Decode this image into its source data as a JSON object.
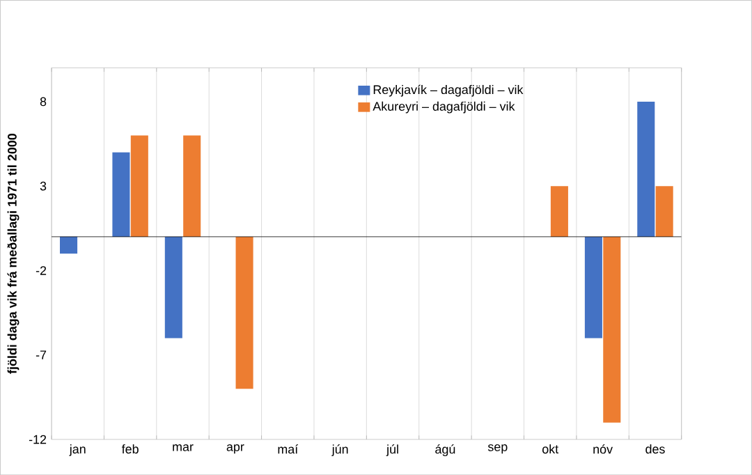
{
  "chart_data": {
    "type": "bar",
    "ylabel": "fjöldi daga vik frá meðallagi 1971 til 2000",
    "categories": [
      "jan",
      "feb",
      "mar",
      "apr",
      "maí",
      "jún",
      "júl",
      "ágú",
      "sep",
      "okt",
      "nóv",
      "des"
    ],
    "series": [
      {
        "name": "Reykjavík – dagafjöldi – vik",
        "color": "#4472c4",
        "values": [
          -1,
          5,
          -6,
          0,
          0,
          0,
          0,
          0,
          0,
          0,
          -6,
          8
        ]
      },
      {
        "name": "Akureyri – dagafjöldi – vik",
        "color": "#ed7d31",
        "values": [
          0,
          6,
          6,
          -9,
          0,
          0,
          0,
          0,
          0,
          3,
          -11,
          3
        ]
      }
    ],
    "ylim": [
      -12,
      10
    ],
    "yticks": [
      -12,
      -7,
      -2,
      3,
      8
    ],
    "grid": "x",
    "legend": "top"
  }
}
